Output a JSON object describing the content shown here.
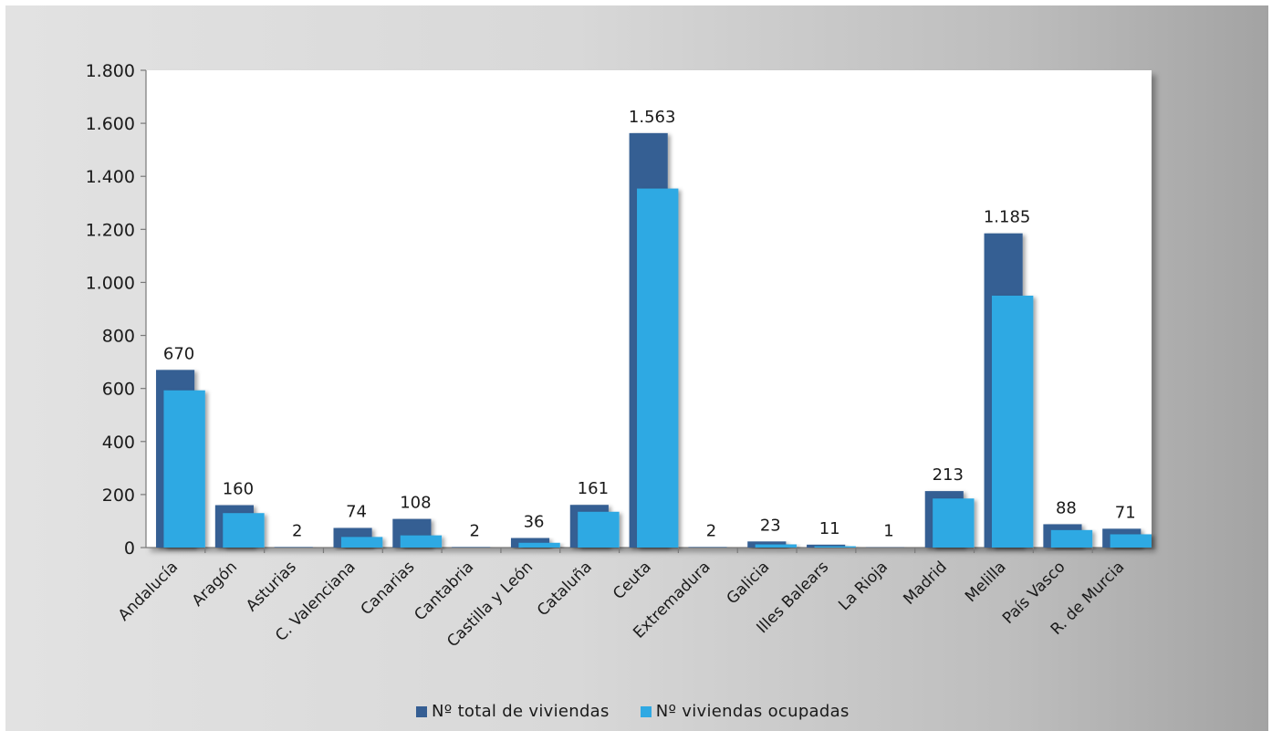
{
  "chart_data": {
    "type": "bar",
    "categories": [
      "Andalucía",
      "Aragón",
      "Asturias",
      "C. Valenciana",
      "Canarias",
      "Cantabria",
      "Castilla y León",
      "Cataluña",
      "Ceuta",
      "Extremadura",
      "Galicia",
      "Illes Balears",
      "La Rioja",
      "Madrid",
      "Melilla",
      "País Vasco",
      "R. de Murcia"
    ],
    "series": [
      {
        "name": "Nº total de viviendas",
        "color": "#355e93",
        "values": [
          670,
          160,
          2,
          74,
          108,
          2,
          36,
          161,
          1563,
          2,
          23,
          11,
          1,
          213,
          1185,
          88,
          71
        ],
        "data_labels": [
          "670",
          "160",
          "2",
          "74",
          "108",
          "2",
          "36",
          "161",
          "1.563",
          "2",
          "23",
          "11",
          "1",
          "213",
          "1.185",
          "88",
          "71"
        ]
      },
      {
        "name": "Nº viviendas ocupadas",
        "color": "#2fa9e3",
        "values": [
          593,
          130,
          0,
          40,
          46,
          0,
          18,
          135,
          1354,
          0,
          12,
          5,
          0,
          185,
          950,
          66,
          50
        ]
      }
    ],
    "ylim": [
      0,
      1800
    ],
    "yticks": [
      0,
      200,
      400,
      600,
      800,
      1000,
      1200,
      1400,
      1600,
      1800
    ],
    "ytick_labels": [
      "0",
      "200",
      "400",
      "600",
      "800",
      "1.000",
      "1.200",
      "1.400",
      "1.600",
      "1.800"
    ],
    "grid": false,
    "legend_position": "bottom"
  }
}
